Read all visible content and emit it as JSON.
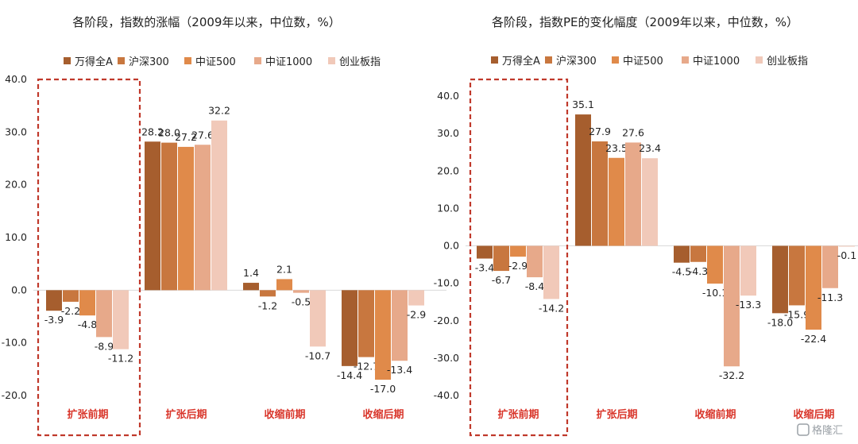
{
  "series_colors": [
    "#a65e2e",
    "#c8773f",
    "#e08a4a",
    "#e7a98a",
    "#f1c9b9"
  ],
  "highlight_color": "#c0392b",
  "category_color": "#d9362b",
  "watermark": "格隆汇",
  "chart_data": [
    {
      "type": "bar",
      "title": "各阶段，指数的涨幅（2009年以来，中位数，%）",
      "categories": [
        "扩张前期",
        "扩张后期",
        "收缩前期",
        "收缩后期"
      ],
      "ylim": [
        -20,
        40
      ],
      "yticks": [
        "40.0",
        "30.0",
        "20.0",
        "10.0",
        "0.0",
        "-10.0",
        "-20.0"
      ],
      "ytick_values": [
        40,
        30,
        20,
        10,
        0,
        -10,
        -20
      ],
      "legend_position": "top",
      "highlight_category": "扩张前期",
      "series": [
        {
          "name": "万得全A",
          "values": [
            -3.9,
            28.2,
            1.4,
            -14.4
          ],
          "labels": [
            "-3.9",
            "28.2",
            "1.4",
            "-14.4"
          ]
        },
        {
          "name": "沪深300",
          "values": [
            -2.2,
            28.0,
            -1.2,
            -12.7
          ],
          "labels": [
            "-2.2",
            "28.0",
            "-1.2",
            "-12.7"
          ]
        },
        {
          "name": "中证500",
          "values": [
            -4.8,
            27.2,
            2.1,
            -17.0
          ],
          "labels": [
            "-4.8",
            "27.2",
            "2.1",
            "-17.0"
          ]
        },
        {
          "name": "中证1000",
          "values": [
            -8.9,
            27.6,
            -0.5,
            -13.4
          ],
          "labels": [
            "-8.9",
            "27.6",
            "-0.5",
            "-13.4"
          ]
        },
        {
          "name": "创业板指",
          "values": [
            -11.2,
            32.2,
            -10.7,
            -2.9
          ],
          "labels": [
            "-11.2",
            "32.2",
            "-10.7",
            "-2.9"
          ]
        }
      ]
    },
    {
      "type": "bar",
      "title": "各阶段，指数PE的变化幅度（2009年以来，中位数，%）",
      "categories": [
        "扩张前期",
        "扩张后期",
        "收缩前期",
        "收缩后期"
      ],
      "ylim": [
        -40,
        40
      ],
      "yticks": [
        "40.0",
        "30.0",
        "20.0",
        "10.0",
        "0.0",
        "-10.0",
        "-20.0",
        "-30.0",
        "-40.0"
      ],
      "ytick_values": [
        40,
        30,
        20,
        10,
        0,
        -10,
        -20,
        -30,
        -40
      ],
      "legend_position": "top",
      "highlight_category": "扩张前期",
      "series": [
        {
          "name": "万得全A",
          "values": [
            -3.4,
            35.1,
            -4.5,
            -18.0
          ],
          "labels": [
            "-3.4",
            "35.1",
            "-4.5",
            "-18.0"
          ]
        },
        {
          "name": "沪深300",
          "values": [
            -6.7,
            27.9,
            -4.3,
            -15.9
          ],
          "labels": [
            "-6.7",
            "27.9",
            "-4.3",
            "-15.9"
          ]
        },
        {
          "name": "中证500",
          "values": [
            -2.9,
            23.5,
            -10.1,
            -22.4
          ],
          "labels": [
            "-2.9",
            "23.5",
            "-10.1",
            "-22.4"
          ]
        },
        {
          "name": "中证1000",
          "values": [
            -8.4,
            27.6,
            -32.2,
            -11.3
          ],
          "labels": [
            "-8.4",
            "27.6",
            "-32.2",
            "-11.3"
          ]
        },
        {
          "name": "创业板指",
          "values": [
            -14.2,
            23.4,
            -13.3,
            -0.1
          ],
          "labels": [
            "-14.2",
            "23.4",
            "-13.3",
            "-0.1"
          ]
        }
      ]
    }
  ]
}
